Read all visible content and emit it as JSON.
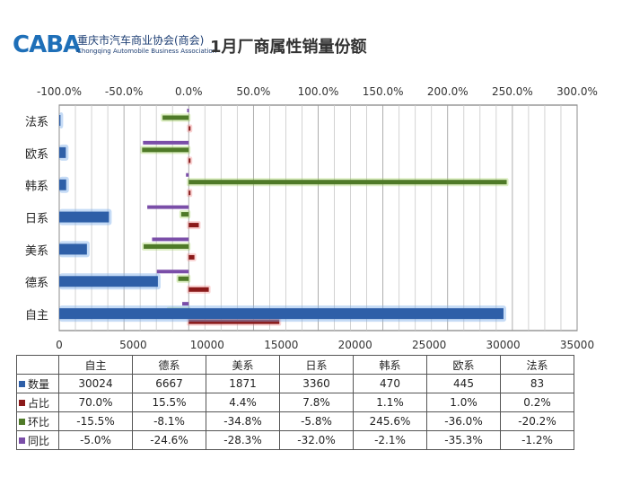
{
  "header": {
    "logo_text": "CABA",
    "org_name_cn": "重庆市汽车商业协会(商会)",
    "org_name_en": "Chongqing Automobile Business Association",
    "title": "1月厂商属性销量份额"
  },
  "colors": {
    "数量": "#2e5fa8",
    "占比": "#8b1a1a",
    "环比": "#4f7a28",
    "同比": "#7a4ea8"
  },
  "chart_data": {
    "type": "bar",
    "orientation": "horizontal",
    "categories": [
      "自主",
      "德系",
      "美系",
      "日系",
      "韩系",
      "欧系",
      "法系"
    ],
    "category_order_top_to_bottom": [
      "法系",
      "欧系",
      "韩系",
      "日系",
      "美系",
      "德系",
      "自主"
    ],
    "series": [
      {
        "name": "数量",
        "axis": "bottom",
        "values": [
          30024,
          6667,
          1871,
          3360,
          470,
          445,
          83
        ]
      },
      {
        "name": "占比",
        "axis": "top",
        "values": [
          70.0,
          15.5,
          4.4,
          7.8,
          1.1,
          1.0,
          0.2
        ]
      },
      {
        "name": "环比",
        "axis": "top",
        "values": [
          -15.5,
          -8.1,
          -34.8,
          -5.8,
          245.6,
          -36.0,
          -20.2
        ]
      },
      {
        "name": "同比",
        "axis": "top",
        "values": [
          -5.0,
          -24.6,
          -28.3,
          -32.0,
          -2.1,
          -35.3,
          -1.2
        ]
      }
    ],
    "x_bottom": {
      "range": [
        0,
        35000
      ],
      "ticks": [
        "0",
        "5000",
        "10000",
        "15000",
        "20000",
        "25000",
        "30000",
        "35000"
      ]
    },
    "x_top": {
      "range": [
        -100,
        300
      ],
      "unit": "%",
      "ticks": [
        "-100.0%",
        "-50.0%",
        "0.0%",
        "50.0%",
        "100.0%",
        "150.0%",
        "200.0%",
        "250.0%",
        "300.0%"
      ]
    },
    "grid": true,
    "legend": "data-table-below"
  },
  "table": {
    "columns": [
      "自主",
      "德系",
      "美系",
      "日系",
      "韩系",
      "欧系",
      "法系"
    ],
    "rows": [
      {
        "label": "数量",
        "cells": [
          "30024",
          "6667",
          "1871",
          "3360",
          "470",
          "445",
          "83"
        ]
      },
      {
        "label": "占比",
        "cells": [
          "70.0%",
          "15.5%",
          "4.4%",
          "7.8%",
          "1.1%",
          "1.0%",
          "0.2%"
        ]
      },
      {
        "label": "环比",
        "cells": [
          "-15.5%",
          "-8.1%",
          "-34.8%",
          "-5.8%",
          "245.6%",
          "-36.0%",
          "-20.2%"
        ]
      },
      {
        "label": "同比",
        "cells": [
          "-5.0%",
          "-24.6%",
          "-28.3%",
          "-32.0%",
          "-2.1%",
          "-35.3%",
          "-1.2%"
        ]
      }
    ]
  }
}
